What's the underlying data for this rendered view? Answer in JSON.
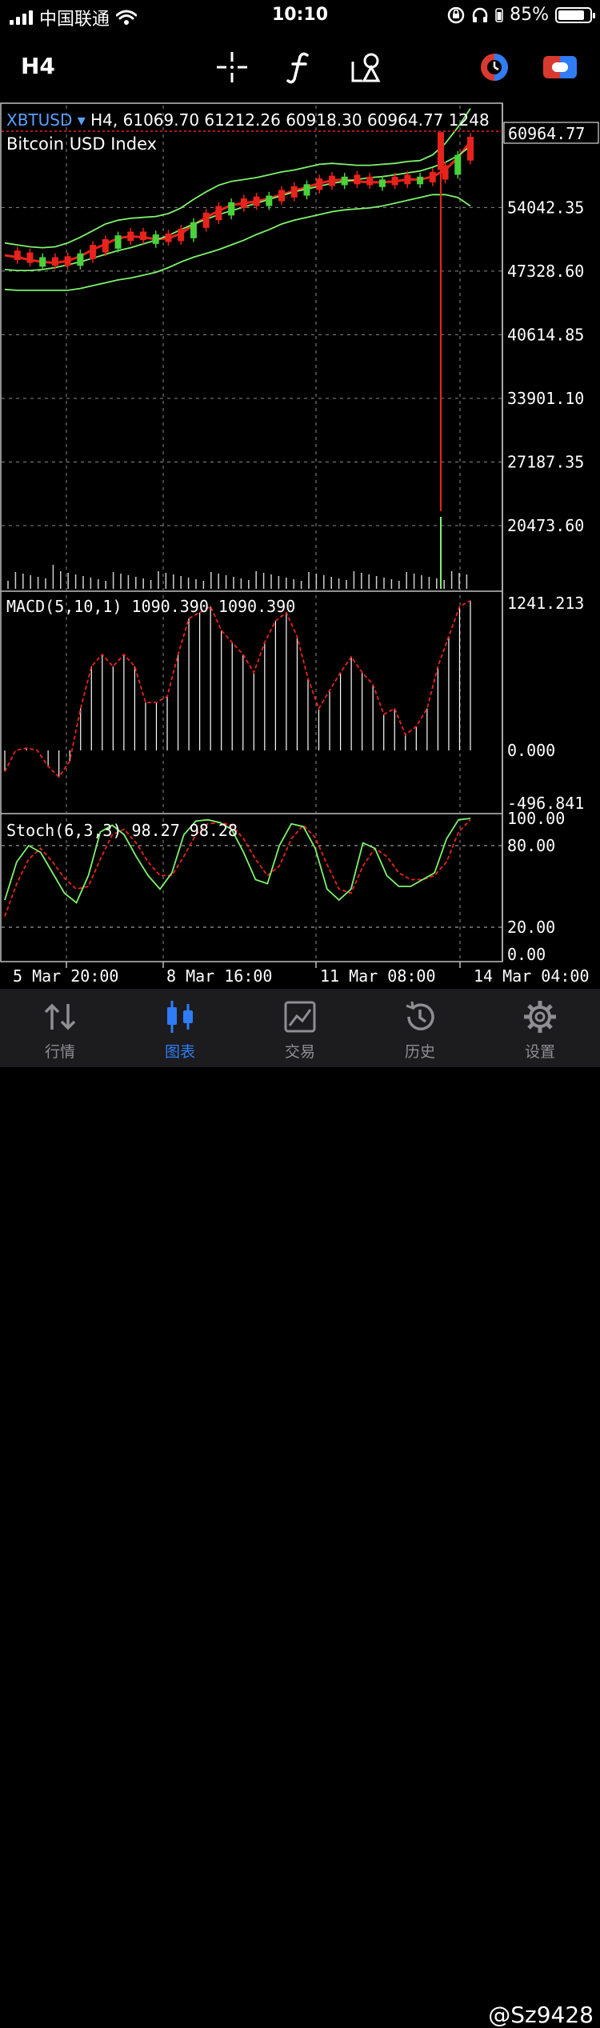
{
  "status": {
    "carrier": "中国联通",
    "time": "10:10",
    "battery": "85%",
    "battery_level": 0.85
  },
  "toolbar": {
    "timeframe": "H4",
    "icons": [
      "crosshair-icon",
      "function-icon",
      "objects-icon",
      "trade-icon",
      "account-icon"
    ]
  },
  "chart_data": [
    {
      "type": "line",
      "panel": "main",
      "title": "Bitcoin USD Index",
      "symbol": "XBTUSD",
      "header": "H4, 61069.70 61212.26 60918.30 60964.77 1248",
      "price_tag": "60964.77",
      "y_ticks": [
        "54042.35",
        "47328.60",
        "40614.85",
        "33901.10",
        "27187.35",
        "20473.60"
      ],
      "ylim": [
        13800,
        64800
      ],
      "series": [
        {
          "name": "Close",
          "color": "#e8231c",
          "values": [
            49000,
            48800,
            48500,
            48300,
            48200,
            48400,
            48900,
            49600,
            50200,
            50800,
            51000,
            50900,
            50700,
            50800,
            51300,
            52200,
            53000,
            53700,
            54300,
            54500,
            54700,
            55000,
            55400,
            55800,
            56200,
            56600,
            56900,
            57000,
            56800,
            56700,
            56700,
            56800,
            57000,
            57000,
            57300,
            58000,
            59300,
            61000
          ]
        },
        {
          "name": "Upper",
          "color": "#7ef26c",
          "values": [
            50300,
            50100,
            49900,
            49800,
            49900,
            50300,
            50900,
            51600,
            52300,
            52700,
            52900,
            53000,
            53100,
            53400,
            54000,
            54900,
            55700,
            56400,
            56800,
            57000,
            57200,
            57500,
            57800,
            58000,
            58300,
            58600,
            58700,
            58600,
            58500,
            58500,
            58600,
            58700,
            58900,
            59000,
            59600,
            60800,
            62500,
            64500
          ]
        },
        {
          "name": "Lower",
          "color": "#7ef26c",
          "values": [
            45400,
            45300,
            45300,
            45300,
            45300,
            45300,
            45500,
            45800,
            46100,
            46400,
            46600,
            46900,
            47200,
            47700,
            48300,
            48800,
            49200,
            49600,
            50100,
            50600,
            51200,
            51700,
            52300,
            52700,
            53000,
            53300,
            53600,
            53800,
            53900,
            54000,
            54200,
            54500,
            54800,
            55100,
            55400,
            55400,
            55100,
            54200
          ]
        },
        {
          "name": "Middle",
          "color": "#7ef26c",
          "values": [
            47500,
            47400,
            47400,
            47500,
            47700,
            48000,
            48300,
            48700,
            49100,
            49500,
            49800,
            50200,
            50600,
            51100,
            51700,
            52300,
            52800,
            53300,
            53700,
            54100,
            54500,
            54900,
            55300,
            55700,
            56000,
            56300,
            56600,
            56800,
            57000,
            57200,
            57300,
            57500,
            57700,
            57900,
            58300,
            58800,
            59500,
            60500
          ]
        }
      ],
      "spike_low": 22000
    },
    {
      "type": "bar",
      "panel": "macd",
      "label": "MACD(5,10,1) 1090.390 1090.390",
      "y_ticks": [
        "1241.213",
        "0.000",
        "-496.841"
      ],
      "ylim": [
        -496.841,
        1241.213
      ],
      "values": [
        -200,
        0,
        20,
        0,
        -150,
        -250,
        -100,
        350,
        700,
        800,
        700,
        800,
        700,
        400,
        400,
        450,
        800,
        1100,
        1150,
        1200,
        1000,
        900,
        800,
        650,
        900,
        1080,
        1150,
        950,
        600,
        350,
        500,
        650,
        780,
        650,
        550,
        300,
        350,
        130,
        200,
        350,
        700,
        950,
        1200,
        1250
      ]
    },
    {
      "type": "line",
      "panel": "stoch",
      "label": "Stoch(6,3,3) 98.27 98.28",
      "y_ticks": [
        "100.00",
        "80.00",
        "20.00",
        "0.00"
      ],
      "ylim": [
        0,
        100
      ],
      "series": [
        {
          "name": "Main",
          "color": "#7ef26c",
          "values": [
            40,
            68,
            80,
            75,
            60,
            45,
            38,
            58,
            90,
            95,
            88,
            72,
            58,
            48,
            60,
            88,
            98,
            99,
            97,
            92,
            75,
            55,
            52,
            80,
            96,
            94,
            78,
            48,
            40,
            48,
            82,
            78,
            58,
            50,
            50,
            55,
            60,
            85,
            99,
            100
          ]
        },
        {
          "name": "Signal",
          "color": "#e8231c",
          "values": [
            28,
            52,
            70,
            78,
            68,
            56,
            48,
            50,
            70,
            88,
            92,
            82,
            68,
            58,
            58,
            72,
            88,
            96,
            97,
            95,
            85,
            70,
            58,
            65,
            85,
            95,
            86,
            66,
            48,
            45,
            65,
            78,
            72,
            60,
            55,
            55,
            58,
            68,
            90,
            99
          ]
        }
      ]
    }
  ],
  "x_labels": [
    "5 Mar 20:00",
    "8 Mar 16:00",
    "11 Mar 08:00",
    "14 Mar 04:00"
  ],
  "tabs": [
    {
      "label": "行情",
      "icon": "quotes-icon"
    },
    {
      "label": "图表",
      "icon": "chart-icon",
      "active": true
    },
    {
      "label": "交易",
      "icon": "trade-icon"
    },
    {
      "label": "历史",
      "icon": "history-icon"
    },
    {
      "label": "设置",
      "icon": "settings-icon"
    }
  ],
  "watermark": "@Sz9428"
}
